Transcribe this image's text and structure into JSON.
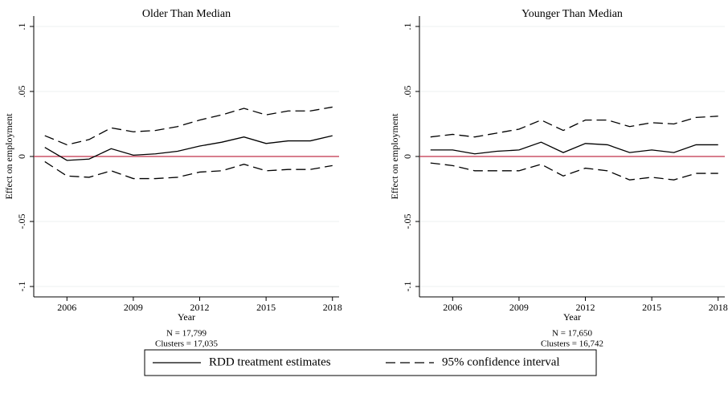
{
  "chart_data": [
    {
      "type": "line",
      "title": "Older Than Median",
      "xlabel": "Year",
      "ylabel": "Effect on employment",
      "notes": [
        "N = 17,799",
        "Clusters = 17,035"
      ],
      "x": [
        2005,
        2006,
        2007,
        2008,
        2009,
        2010,
        2011,
        2012,
        2013,
        2014,
        2015,
        2016,
        2017,
        2018
      ],
      "series": [
        {
          "name": "RDD treatment estimates",
          "color": "#000000",
          "style": "solid",
          "values": [
            0.007,
            -0.003,
            -0.002,
            0.006,
            0.001,
            0.002,
            0.004,
            0.008,
            0.011,
            0.015,
            0.01,
            0.012,
            0.012,
            0.016
          ]
        },
        {
          "name": "95% confidence interval",
          "color": "#000000",
          "style": "dashed",
          "upper": [
            0.016,
            0.009,
            0.013,
            0.022,
            0.019,
            0.02,
            0.023,
            0.028,
            0.032,
            0.037,
            0.032,
            0.035,
            0.035,
            0.038
          ],
          "lower": [
            -0.004,
            -0.015,
            -0.016,
            -0.011,
            -0.017,
            -0.017,
            -0.016,
            -0.012,
            -0.011,
            -0.006,
            -0.011,
            -0.01,
            -0.01,
            -0.007
          ]
        }
      ],
      "xlim": [
        2004.5,
        2018.3
      ],
      "xticks": [
        2006,
        2009,
        2012,
        2015,
        2018
      ],
      "ylim": [
        -0.108,
        0.108
      ],
      "yticks": [
        {
          "value": -0.1,
          "label": "-.1"
        },
        {
          "value": -0.05,
          "label": "-.05"
        },
        0,
        {
          "value": 0.05,
          "label": ".05"
        },
        {
          "value": 0.1,
          "label": ".1"
        }
      ],
      "grid": true,
      "hline": 0,
      "hline_color": "#c0304a"
    },
    {
      "type": "line",
      "title": "Younger Than Median",
      "xlabel": "Year",
      "ylabel": "Effect on employment",
      "notes": [
        "N = 17,650",
        "Clusters = 16,742"
      ],
      "x": [
        2005,
        2006,
        2007,
        2008,
        2009,
        2010,
        2011,
        2012,
        2013,
        2014,
        2015,
        2016,
        2017,
        2018
      ],
      "series": [
        {
          "name": "RDD treatment estimates",
          "color": "#000000",
          "style": "solid",
          "values": [
            0.005,
            0.005,
            0.002,
            0.004,
            0.005,
            0.011,
            0.003,
            0.01,
            0.009,
            0.003,
            0.005,
            0.003,
            0.009,
            0.009
          ]
        },
        {
          "name": "95% confidence interval",
          "color": "#000000",
          "style": "dashed",
          "upper": [
            0.015,
            0.017,
            0.015,
            0.018,
            0.021,
            0.028,
            0.02,
            0.028,
            0.028,
            0.023,
            0.026,
            0.025,
            0.03,
            0.031
          ],
          "lower": [
            -0.005,
            -0.007,
            -0.011,
            -0.011,
            -0.011,
            -0.006,
            -0.015,
            -0.009,
            -0.011,
            -0.018,
            -0.016,
            -0.018,
            -0.013,
            -0.013
          ]
        }
      ],
      "xlim": [
        2004.5,
        2018.3
      ],
      "xticks": [
        2006,
        2009,
        2012,
        2015,
        2018
      ],
      "ylim": [
        -0.108,
        0.108
      ],
      "yticks": [
        {
          "value": -0.1,
          "label": "-.1"
        },
        {
          "value": -0.05,
          "label": "-.05"
        },
        0,
        {
          "value": 0.05,
          "label": ".05"
        },
        {
          "value": 0.1,
          "label": ".1"
        }
      ],
      "grid": true,
      "hline": 0,
      "hline_color": "#c0304a"
    }
  ]
}
